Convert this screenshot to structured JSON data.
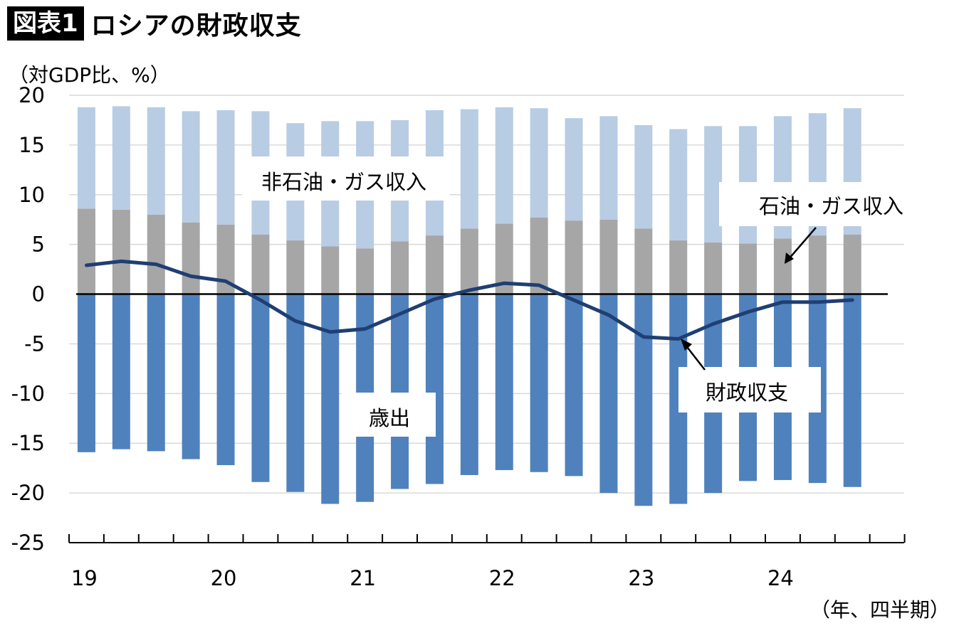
{
  "header": {
    "badge": "図表1",
    "title": "ロシアの財政収支"
  },
  "chart_data": {
    "type": "bar",
    "title": "ロシアの財政収支",
    "ylabel": "（対GDP比、%）",
    "xlabel": "（年、四半期）",
    "ylim": [
      -25,
      20
    ],
    "ytick_step": 5,
    "yticks": [
      "20",
      "15",
      "10",
      "5",
      "0",
      "-5",
      "-10",
      "-15",
      "-20",
      "-25"
    ],
    "year_labels": [
      "19",
      "20",
      "21",
      "22",
      "23",
      "24"
    ],
    "quarters_per_year": 4,
    "grid": true,
    "colors": {
      "non_oil": "#b8cce4",
      "oil": "#a6a6a6",
      "expenditure": "#4f81bd",
      "balance": "#1f3f73"
    },
    "annotations": {
      "non_oil": "非石油・ガス収入",
      "oil": "石油・ガス収入",
      "expenditure": "歳出",
      "balance": "財政収支"
    },
    "series": [
      {
        "name": "石油・ガス収入",
        "key": "oil",
        "kind": "bar",
        "values": [
          8.6,
          8.5,
          8.0,
          7.2,
          7.0,
          6.0,
          5.4,
          4.8,
          4.6,
          5.3,
          5.9,
          6.6,
          7.1,
          7.7,
          7.4,
          7.5,
          6.6,
          5.4,
          5.2,
          5.1,
          5.6,
          5.9,
          6.0
        ]
      },
      {
        "name": "非石油・ガス収入",
        "key": "non_oil",
        "kind": "bar",
        "values": [
          10.2,
          10.4,
          10.8,
          11.2,
          11.5,
          12.4,
          11.8,
          12.6,
          12.8,
          12.2,
          12.6,
          12.0,
          11.7,
          11.0,
          10.3,
          10.4,
          10.4,
          11.2,
          11.7,
          11.8,
          12.3,
          12.3,
          12.7
        ]
      },
      {
        "name": "歳出",
        "key": "expenditure",
        "kind": "bar",
        "values": [
          -15.9,
          -15.6,
          -15.8,
          -16.6,
          -17.2,
          -18.9,
          -19.9,
          -21.1,
          -20.9,
          -19.6,
          -19.1,
          -18.2,
          -17.7,
          -17.9,
          -18.3,
          -20.0,
          -21.3,
          -21.1,
          -20.0,
          -18.8,
          -18.7,
          -19.0,
          -19.4
        ]
      },
      {
        "name": "財政収支",
        "key": "balance",
        "kind": "line",
        "values": [
          2.9,
          3.3,
          3.0,
          1.8,
          1.3,
          -0.6,
          -2.7,
          -3.8,
          -3.5,
          -2.0,
          -0.5,
          0.4,
          1.1,
          0.9,
          -0.6,
          -2.1,
          -4.3,
          -4.5,
          -3.0,
          -1.8,
          -0.8,
          -0.8,
          -0.6
        ]
      }
    ]
  }
}
